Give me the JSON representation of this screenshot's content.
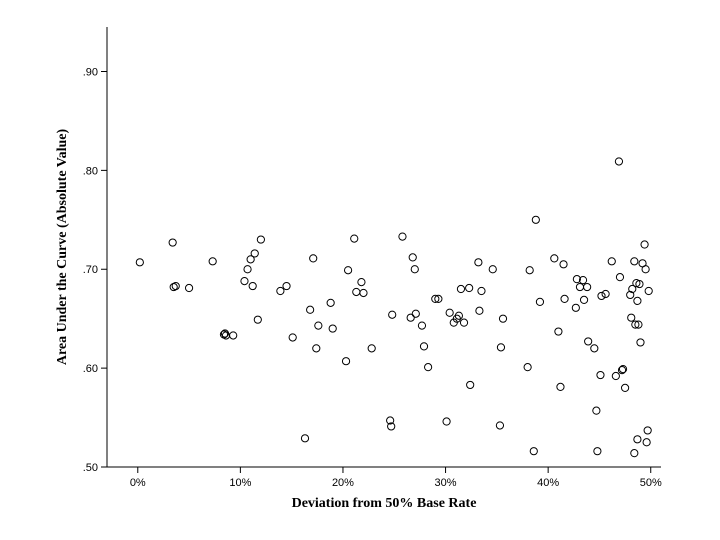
{
  "chart_data": {
    "type": "scatter",
    "title": "",
    "xlabel": "Deviation from 50% Base Rate",
    "ylabel": "Area Under the Curve (Absolute Value)",
    "xlim": [
      -0.03,
      0.51
    ],
    "ylim": [
      0.5,
      0.945
    ],
    "xticks": [
      0.0,
      0.1,
      0.2,
      0.3,
      0.4,
      0.5
    ],
    "xtick_labels": [
      "0%",
      "10%",
      "20%",
      "30%",
      "40%",
      "50%"
    ],
    "yticks": [
      0.5,
      0.6,
      0.7,
      0.8,
      0.9
    ],
    "ytick_labels": [
      ".50",
      ".60",
      ".70",
      ".80",
      ".90"
    ],
    "grid": false,
    "legend": "none",
    "marker": "open-circle",
    "points": [
      [
        0.002,
        0.707
      ],
      [
        0.034,
        0.727
      ],
      [
        0.035,
        0.682
      ],
      [
        0.037,
        0.683
      ],
      [
        0.05,
        0.681
      ],
      [
        0.073,
        0.708
      ],
      [
        0.084,
        0.634
      ],
      [
        0.085,
        0.635
      ],
      [
        0.086,
        0.633
      ],
      [
        0.093,
        0.633
      ],
      [
        0.104,
        0.688
      ],
      [
        0.107,
        0.7
      ],
      [
        0.11,
        0.71
      ],
      [
        0.112,
        0.683
      ],
      [
        0.114,
        0.716
      ],
      [
        0.117,
        0.649
      ],
      [
        0.12,
        0.73
      ],
      [
        0.139,
        0.678
      ],
      [
        0.145,
        0.683
      ],
      [
        0.151,
        0.631
      ],
      [
        0.163,
        0.529
      ],
      [
        0.168,
        0.659
      ],
      [
        0.171,
        0.711
      ],
      [
        0.174,
        0.62
      ],
      [
        0.176,
        0.643
      ],
      [
        0.188,
        0.666
      ],
      [
        0.19,
        0.64
      ],
      [
        0.203,
        0.607
      ],
      [
        0.205,
        0.699
      ],
      [
        0.211,
        0.731
      ],
      [
        0.213,
        0.677
      ],
      [
        0.218,
        0.687
      ],
      [
        0.22,
        0.676
      ],
      [
        0.228,
        0.62
      ],
      [
        0.246,
        0.547
      ],
      [
        0.247,
        0.541
      ],
      [
        0.248,
        0.654
      ],
      [
        0.258,
        0.733
      ],
      [
        0.266,
        0.651
      ],
      [
        0.268,
        0.712
      ],
      [
        0.27,
        0.7
      ],
      [
        0.271,
        0.655
      ],
      [
        0.277,
        0.643
      ],
      [
        0.279,
        0.622
      ],
      [
        0.283,
        0.601
      ],
      [
        0.29,
        0.67
      ],
      [
        0.293,
        0.67
      ],
      [
        0.301,
        0.546
      ],
      [
        0.304,
        0.656
      ],
      [
        0.308,
        0.646
      ],
      [
        0.311,
        0.65
      ],
      [
        0.313,
        0.653
      ],
      [
        0.315,
        0.68
      ],
      [
        0.318,
        0.646
      ],
      [
        0.323,
        0.681
      ],
      [
        0.324,
        0.583
      ],
      [
        0.332,
        0.707
      ],
      [
        0.333,
        0.658
      ],
      [
        0.335,
        0.678
      ],
      [
        0.346,
        0.7
      ],
      [
        0.353,
        0.542
      ],
      [
        0.354,
        0.621
      ],
      [
        0.356,
        0.65
      ],
      [
        0.38,
        0.601
      ],
      [
        0.382,
        0.699
      ],
      [
        0.386,
        0.516
      ],
      [
        0.388,
        0.75
      ],
      [
        0.392,
        0.667
      ],
      [
        0.406,
        0.711
      ],
      [
        0.41,
        0.637
      ],
      [
        0.412,
        0.581
      ],
      [
        0.415,
        0.705
      ],
      [
        0.416,
        0.67
      ],
      [
        0.427,
        0.661
      ],
      [
        0.428,
        0.69
      ],
      [
        0.431,
        0.682
      ],
      [
        0.434,
        0.689
      ],
      [
        0.435,
        0.669
      ],
      [
        0.438,
        0.682
      ],
      [
        0.439,
        0.627
      ],
      [
        0.445,
        0.62
      ],
      [
        0.447,
        0.557
      ],
      [
        0.448,
        0.516
      ],
      [
        0.451,
        0.593
      ],
      [
        0.452,
        0.673
      ],
      [
        0.456,
        0.675
      ],
      [
        0.462,
        0.708
      ],
      [
        0.466,
        0.592
      ],
      [
        0.469,
        0.809
      ],
      [
        0.47,
        0.692
      ],
      [
        0.472,
        0.598
      ],
      [
        0.473,
        0.599
      ],
      [
        0.475,
        0.58
      ],
      [
        0.48,
        0.674
      ],
      [
        0.481,
        0.651
      ],
      [
        0.482,
        0.68
      ],
      [
        0.484,
        0.708
      ],
      [
        0.484,
        0.514
      ],
      [
        0.485,
        0.644
      ],
      [
        0.486,
        0.686
      ],
      [
        0.487,
        0.528
      ],
      [
        0.487,
        0.668
      ],
      [
        0.488,
        0.644
      ],
      [
        0.489,
        0.685
      ],
      [
        0.49,
        0.626
      ],
      [
        0.492,
        0.706
      ],
      [
        0.494,
        0.725
      ],
      [
        0.495,
        0.7
      ],
      [
        0.496,
        0.525
      ],
      [
        0.497,
        0.537
      ],
      [
        0.498,
        0.678
      ]
    ]
  }
}
